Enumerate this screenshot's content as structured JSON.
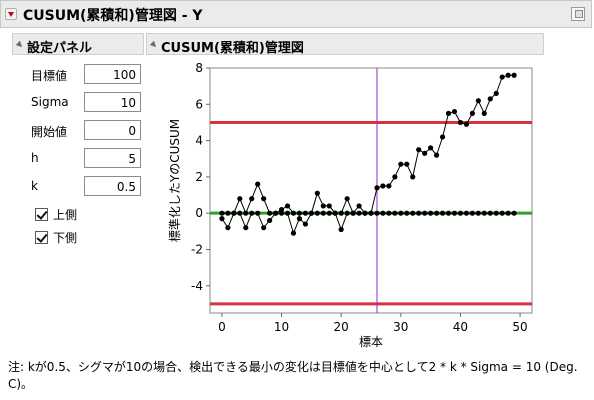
{
  "window": {
    "title": "CUSUM(累積和)管理図 - Y"
  },
  "settings_panel": {
    "title": "設定パネル",
    "fields": [
      {
        "label": "目標値",
        "value": "100"
      },
      {
        "label": "Sigma",
        "value": "10"
      },
      {
        "label": "開始値",
        "value": "0"
      },
      {
        "label": "h",
        "value": "5"
      },
      {
        "label": "k",
        "value": "0.5"
      }
    ],
    "checkboxes": [
      {
        "label": "上側",
        "checked": true
      },
      {
        "label": "下側",
        "checked": true
      }
    ]
  },
  "chart_panel": {
    "title": "CUSUM(累積和)管理図"
  },
  "chart_data": {
    "type": "line",
    "xlabel": "標本",
    "ylabel": "標準化したYのCUSUM",
    "xlim": [
      -2,
      52
    ],
    "ylim": [
      -5.5,
      8
    ],
    "xticks": [
      0,
      10,
      20,
      30,
      40,
      50
    ],
    "yticks": [
      -4,
      -2,
      0,
      2,
      4,
      6,
      8
    ],
    "upper_limit": 5,
    "lower_limit": -5,
    "center_line": 0,
    "vertical_marker_x": 26,
    "colors": {
      "limit": "#d8313f",
      "center": "#2ca02c",
      "marker": "#9a2bd1",
      "series": "#000000"
    },
    "series": [
      {
        "role": "upper",
        "x": [
          0,
          1,
          2,
          3,
          4,
          5,
          6,
          7,
          8,
          9,
          10,
          11,
          12,
          13,
          14,
          15,
          16,
          17,
          18,
          19,
          20,
          21,
          22,
          23,
          24,
          25,
          26,
          27,
          28,
          29,
          30,
          31,
          32,
          33,
          34,
          35,
          36,
          37,
          38,
          39,
          40,
          41,
          42,
          43,
          44,
          45,
          46,
          47,
          48,
          49
        ],
        "y": [
          0,
          0,
          0,
          0.8,
          0,
          0.8,
          1.6,
          0.8,
          0,
          0,
          0.2,
          0.4,
          0,
          0,
          0,
          0,
          1.1,
          0.4,
          0.4,
          0,
          0,
          0.8,
          0,
          0.4,
          0,
          0,
          1.4,
          1.5,
          1.5,
          2.0,
          2.7,
          2.7,
          2.0,
          3.5,
          3.3,
          3.6,
          3.2,
          4.2,
          5.5,
          5.6,
          5.0,
          4.9,
          5.5,
          6.2,
          5.5,
          6.3,
          6.6,
          7.5,
          7.6,
          7.6
        ]
      },
      {
        "role": "lower",
        "x": [
          0,
          1,
          2,
          3,
          4,
          5,
          6,
          7,
          8,
          9,
          10,
          11,
          12,
          13,
          14,
          15,
          16,
          17,
          18,
          19,
          20,
          21,
          22,
          23,
          24,
          25,
          26,
          27,
          28,
          29,
          30,
          31,
          32,
          33,
          34,
          35,
          36,
          37,
          38,
          39,
          40,
          41,
          42,
          43,
          44,
          45,
          46,
          47,
          48,
          49
        ],
        "y": [
          -0.3,
          -0.8,
          0,
          0,
          -0.8,
          0,
          0,
          -0.8,
          -0.4,
          0,
          0,
          0,
          -1.1,
          -0.3,
          -0.6,
          0,
          0,
          0,
          0,
          0,
          -0.9,
          0,
          0,
          0,
          0,
          0,
          0,
          0,
          0,
          0,
          0,
          0,
          0,
          0,
          0,
          0,
          0,
          0,
          0,
          0,
          0,
          0,
          0,
          0,
          0,
          0,
          0,
          0,
          0,
          0
        ]
      }
    ]
  },
  "note": "注: kが0.5、シグマが10の場合、検出できる最小の変化は目標値を中心として2 * k * Sigma = 10 (Deg. C)。"
}
